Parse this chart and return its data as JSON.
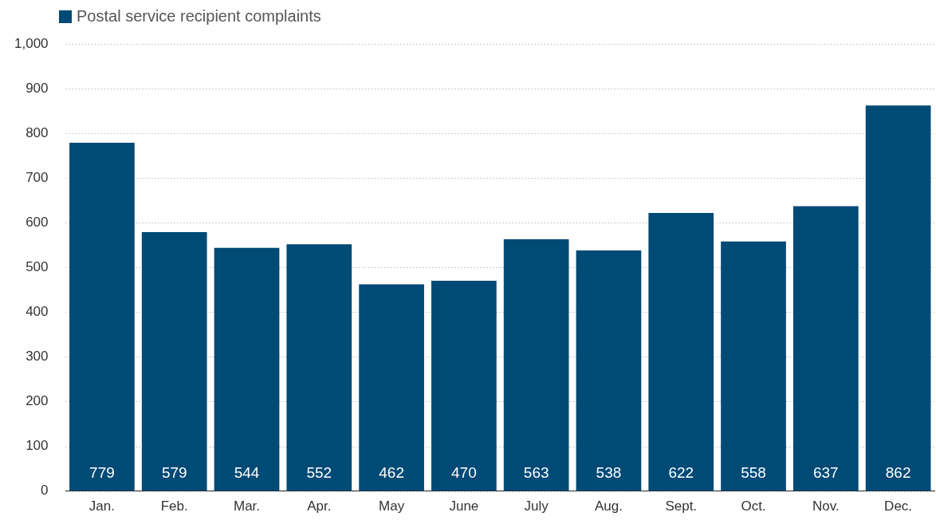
{
  "chart_data": {
    "type": "bar",
    "categories": [
      "Jan.",
      "Feb.",
      "Mar.",
      "Apr.",
      "May",
      "June",
      "July",
      "Aug.",
      "Sept.",
      "Oct.",
      "Nov.",
      "Dec."
    ],
    "series": [
      {
        "name": "Postal service recipient complaints",
        "color": "#004a76",
        "values": [
          779,
          579,
          544,
          552,
          462,
          470,
          563,
          538,
          622,
          558,
          637,
          862
        ]
      }
    ],
    "ylim": [
      0,
      1000
    ],
    "yticks": [
      0,
      100,
      200,
      300,
      400,
      500,
      600,
      700,
      800,
      900,
      {
        "value": 1000,
        "label": "1,000"
      }
    ],
    "grid": "y",
    "legend": "top left",
    "data_labels": true
  }
}
